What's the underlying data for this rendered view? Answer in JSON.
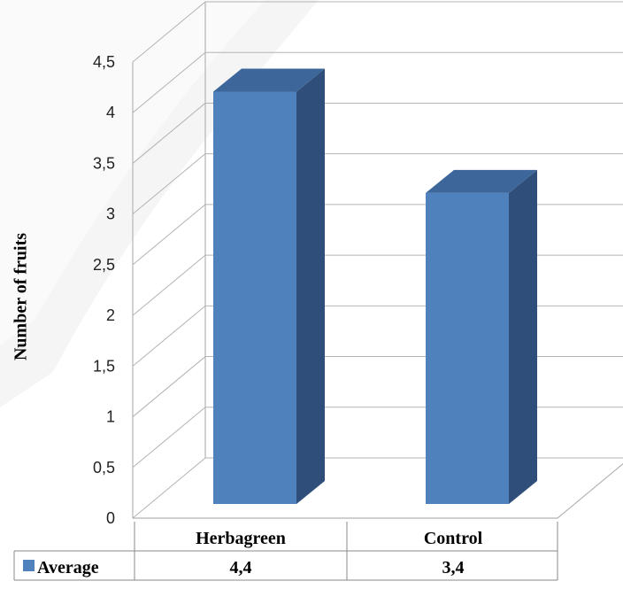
{
  "chart_data": {
    "type": "bar",
    "categories": [
      "Herbagreen",
      "Control"
    ],
    "series": [
      {
        "name": "Average",
        "values": [
          4.4,
          3.4
        ],
        "value_labels": [
          "4,4",
          "3,4"
        ],
        "color": "#4f81bd"
      }
    ],
    "ylabel": "Number of fruits",
    "ylim": [
      0,
      4.5
    ],
    "yticks": [
      "0",
      "0,5",
      "1",
      "1,5",
      "2",
      "2,5",
      "3",
      "3,5",
      "4",
      "4,5"
    ],
    "grid": true,
    "legend_placement": "data-table-bottom",
    "colors": {
      "front": "#4f81bd",
      "side": "#2f4f7a",
      "top": "#3d679a",
      "grid": "#b3b3b3"
    }
  }
}
